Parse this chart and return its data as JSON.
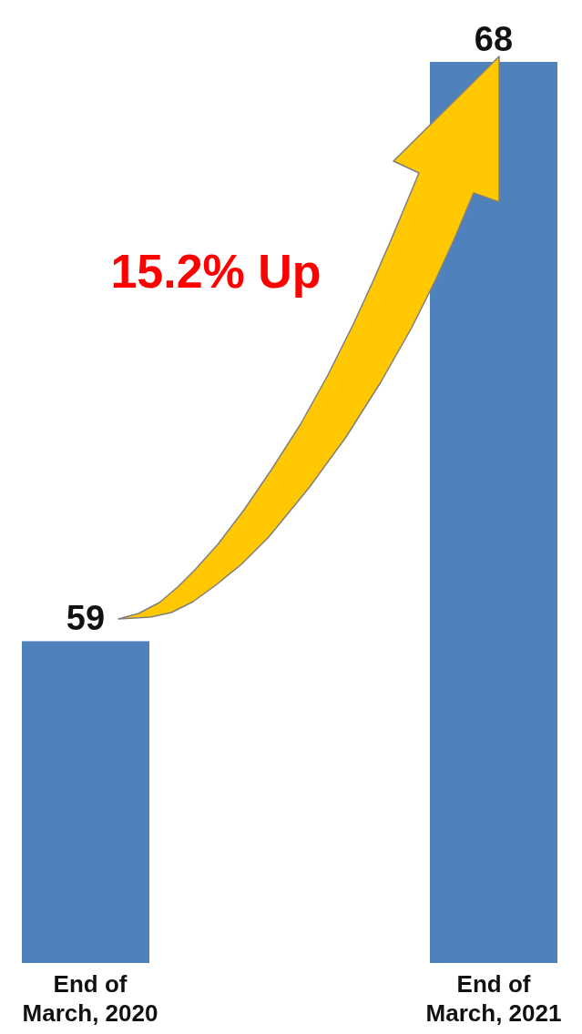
{
  "chart_data": {
    "type": "bar",
    "categories": [
      "End of March, 2020",
      "End of March, 2021"
    ],
    "values": [
      59,
      68
    ],
    "color": "#4f81bd",
    "ylim": [
      54,
      68
    ],
    "data_labels": true,
    "tick_labels": "x",
    "annotations": [
      "15.2% Up"
    ]
  }
}
